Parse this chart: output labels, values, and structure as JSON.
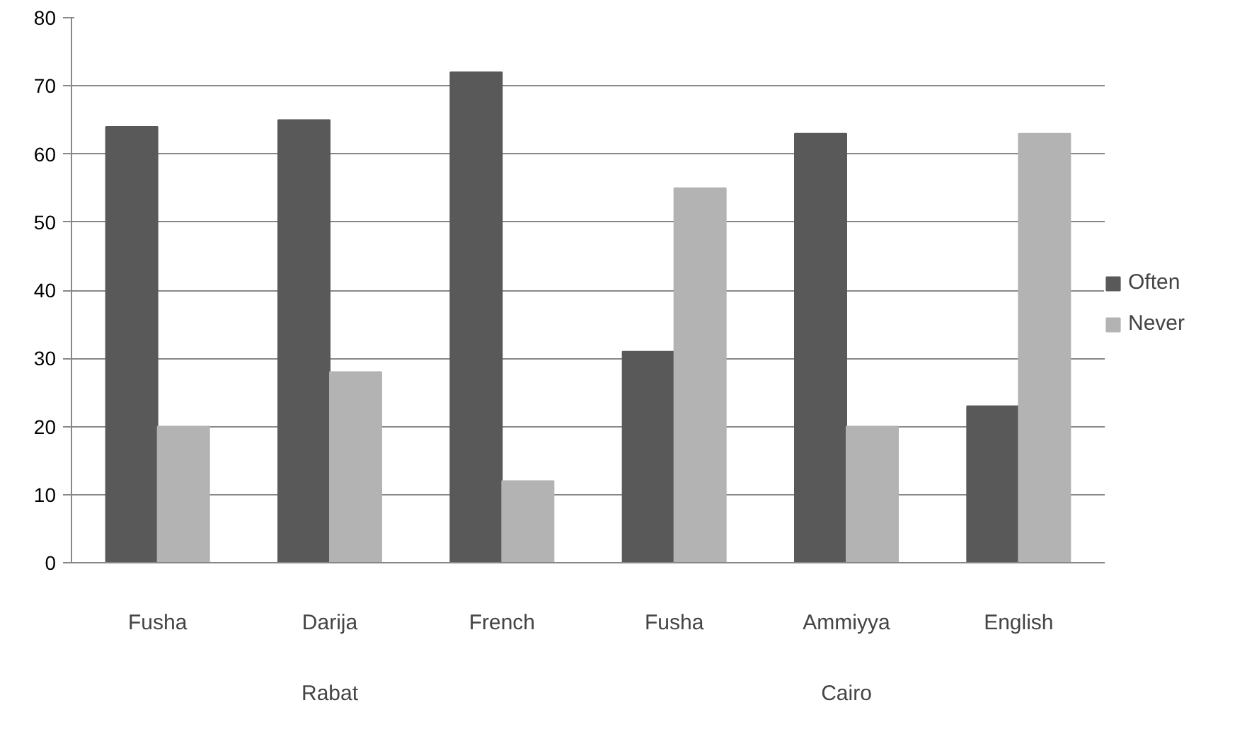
{
  "chart_data": {
    "type": "bar",
    "categories": [
      "Fusha",
      "Darija",
      "French",
      "Fusha",
      "Ammiyya",
      "English"
    ],
    "series": [
      {
        "name": "Often",
        "color": "#595959",
        "values": [
          64,
          65,
          72,
          31,
          63,
          23
        ]
      },
      {
        "name": "Never",
        "color": "#b3b3b3",
        "values": [
          20,
          28,
          12,
          55,
          20,
          63
        ]
      }
    ],
    "annotations": [
      "Rabat",
      "Cairo"
    ],
    "ylim": [
      0,
      80
    ],
    "yticks": [
      0,
      10,
      20,
      30,
      40,
      50,
      60,
      70,
      80
    ],
    "grid": "y",
    "legend": "right"
  }
}
